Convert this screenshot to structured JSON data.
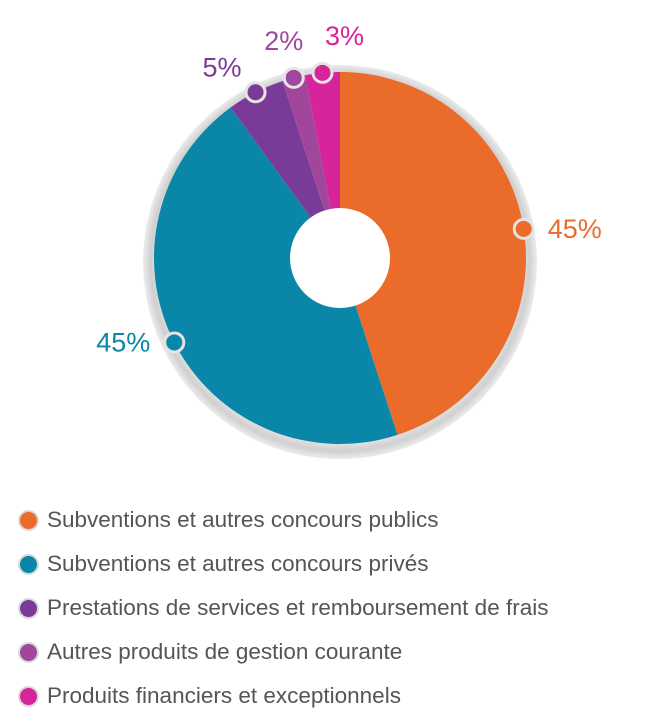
{
  "chart_data": {
    "type": "pie",
    "donut": true,
    "slices": [
      {
        "label": "Subventions et autres concours publics",
        "value": 45,
        "display": "45%",
        "color": "#ea6b2a"
      },
      {
        "label": "Subventions et autres concours privés",
        "value": 45,
        "display": "45%",
        "color": "#0a87a8"
      },
      {
        "label": "Prestations de services et remboursement de frais",
        "value": 5,
        "display": "5%",
        "color": "#7a3a97"
      },
      {
        "label": "Autres produits de gestion courante",
        "value": 2,
        "display": "2%",
        "color": "#a0479c"
      },
      {
        "label": "Produits financiers et exceptionnels",
        "value": 3,
        "display": "3%",
        "color": "#d6249a"
      }
    ],
    "legend_position": "bottom"
  }
}
